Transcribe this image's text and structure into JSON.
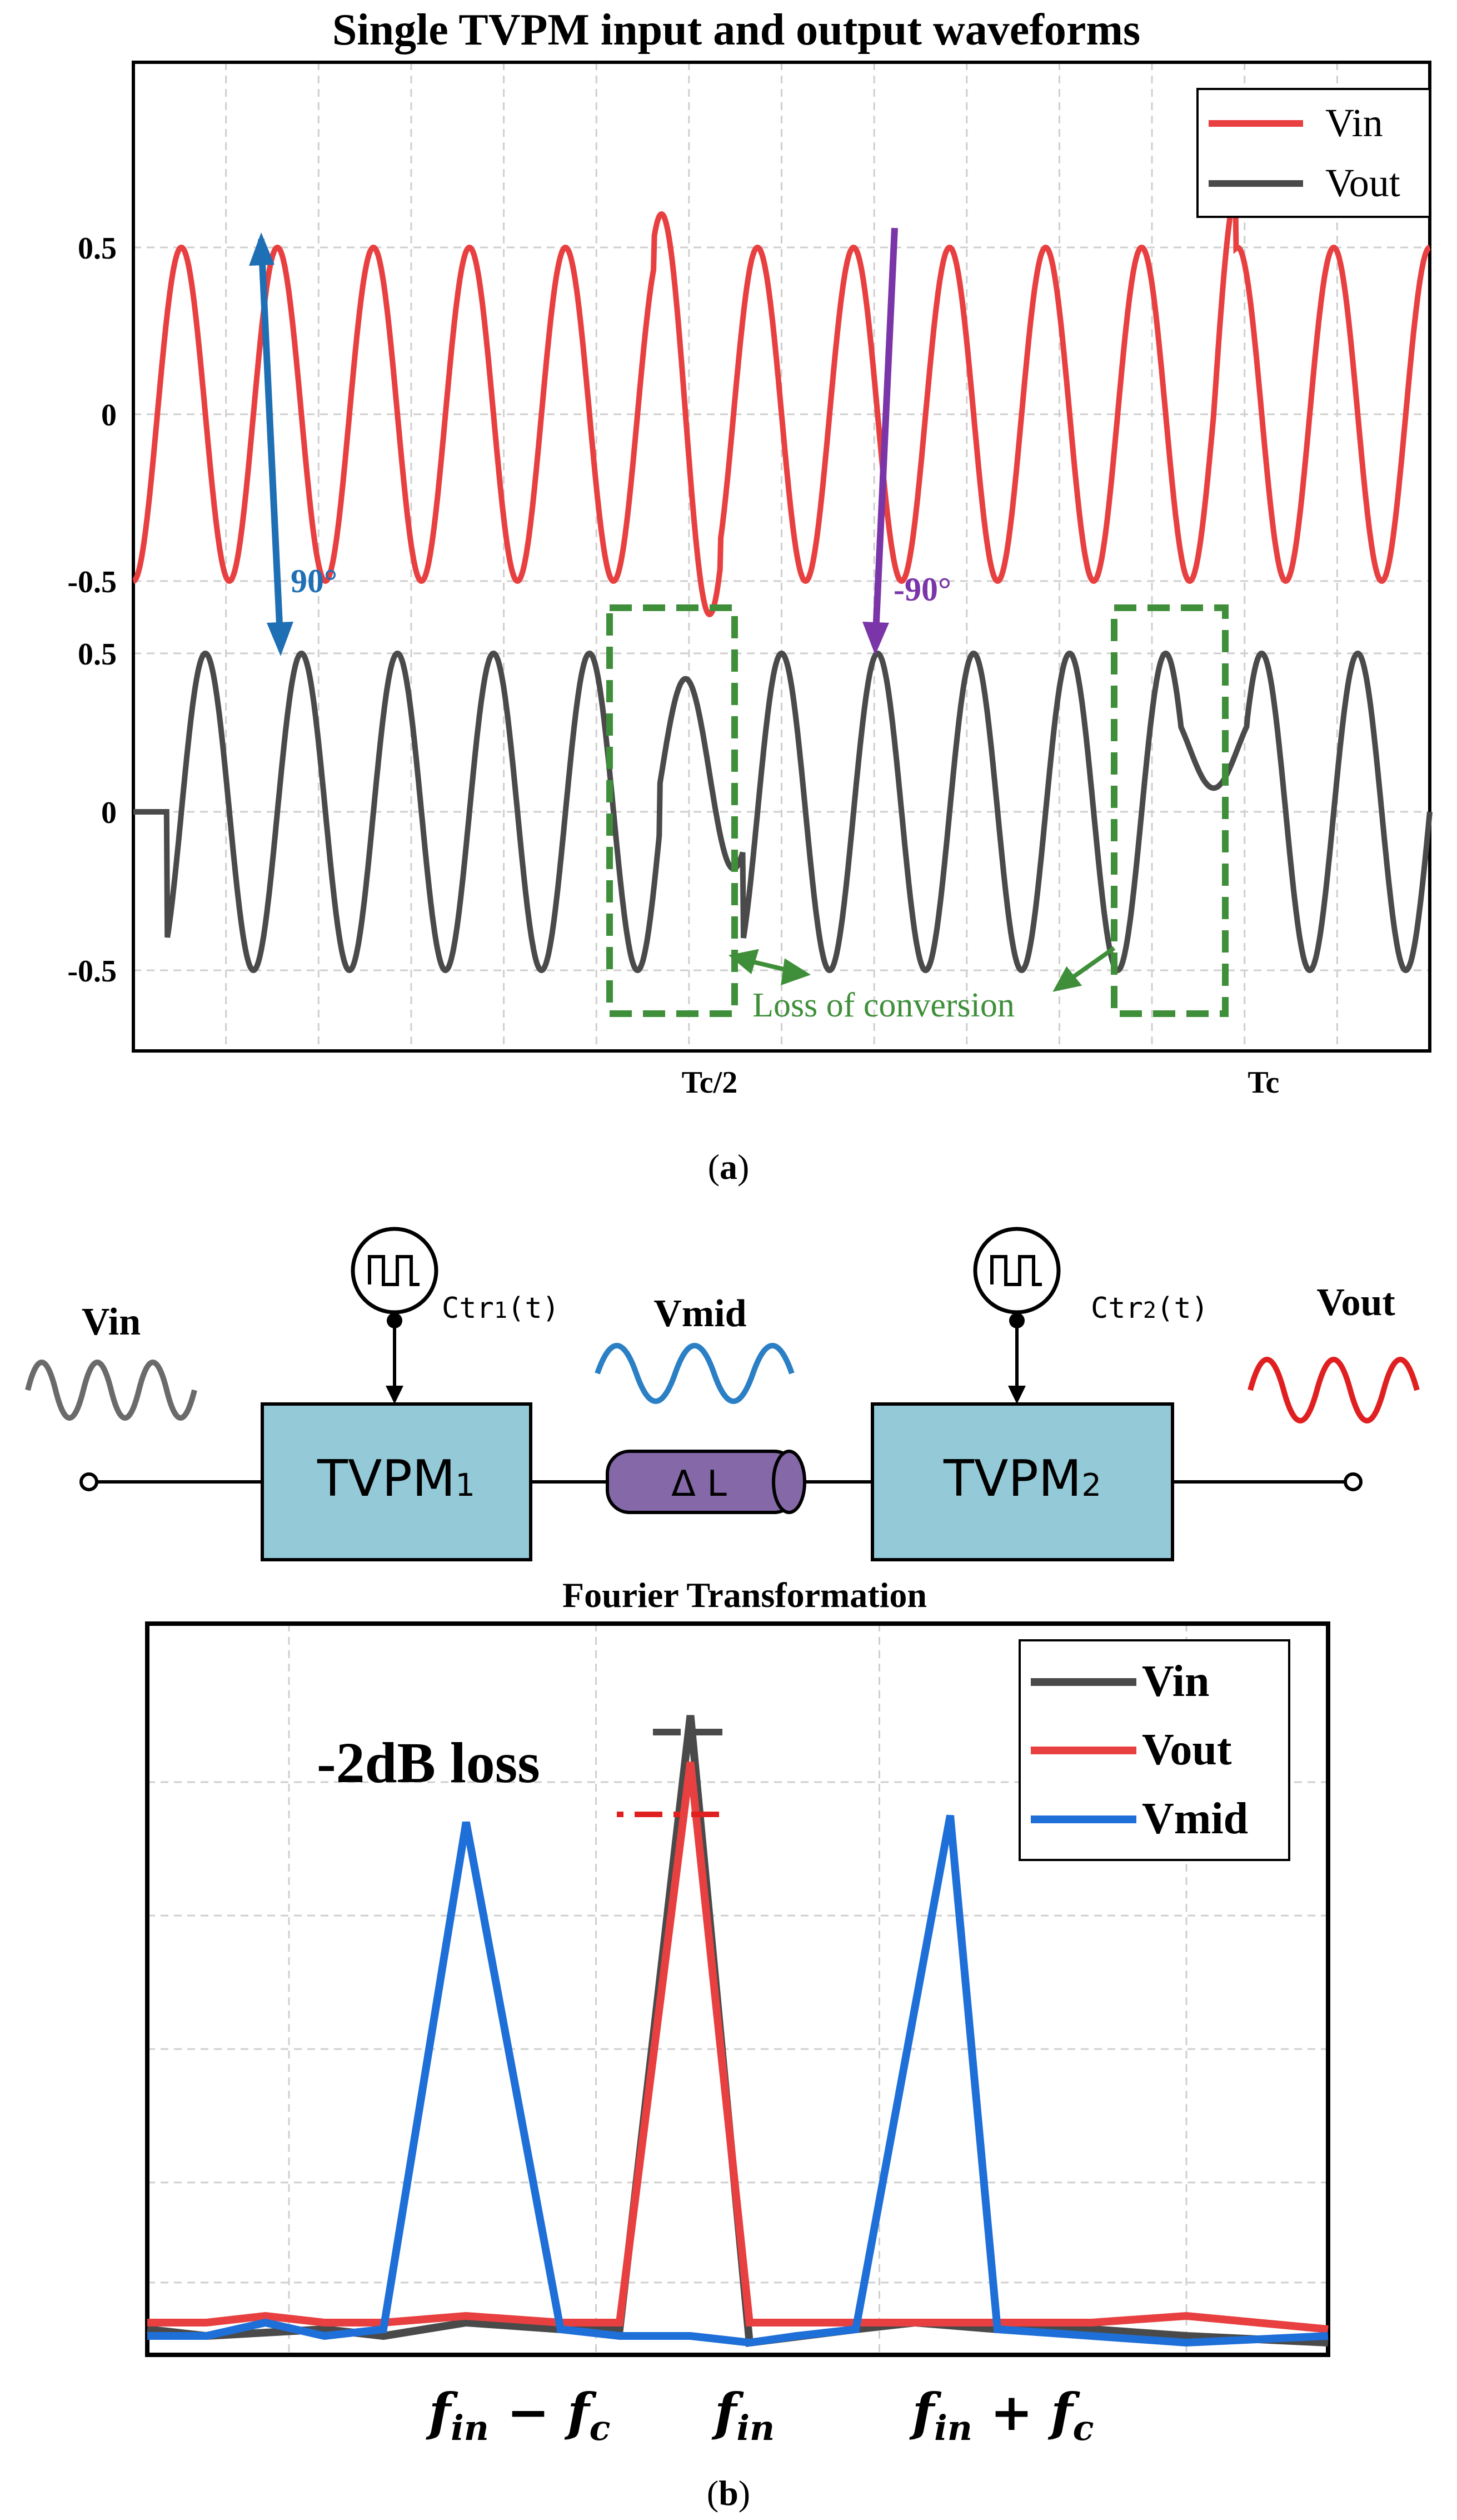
{
  "figure_a": {
    "caption_open": "(",
    "caption_letter": "a",
    "caption_close": ")",
    "legend": [
      {
        "label": "Vin",
        "color": "#e84040"
      },
      {
        "label": "Vout",
        "color": "#4a4a4a"
      }
    ],
    "annotations": {
      "phase_in": "90°",
      "phase_in_color": "#1f6fb5",
      "phase_out": "-90°",
      "phase_out_color": "#7a35a8",
      "loss": "Loss of conversion",
      "loss_color": "#3f8f3a"
    }
  },
  "figure_b_diagram": {
    "vin_label": "Vin",
    "vmid_label": "Vmid",
    "vout_label": "Vout",
    "block1_main": "TVPM",
    "block1_sub": "1",
    "block2_main": "TVPM",
    "block2_sub": "2",
    "ctr1_main": "Ctr",
    "ctr1_sub": "1",
    "ctr1_tail": "(t)",
    "ctr2_main": "Ctr",
    "ctr2_sub": "2",
    "ctr2_tail": "(t)",
    "delay_label": "Δ L",
    "colors": {
      "block": "#94cad8",
      "delay": "#8468a8",
      "vin_wave": "#6a6a6a",
      "vmid_wave": "#2b7fc4",
      "vout_wave": "#e02020"
    }
  },
  "figure_b": {
    "caption_open": "(",
    "caption_letter": "b",
    "caption_close": ")",
    "loss_text": "-2dB loss",
    "xtick_minus": {
      "f": "f",
      "sub": "in",
      "op": " − ",
      "f2": "f",
      "sub2": "c"
    },
    "xtick_center": {
      "f": "f",
      "sub": "in"
    },
    "xtick_plus": {
      "f": "f",
      "sub": "in",
      "op": " + ",
      "f2": "f",
      "sub2": "c"
    }
  },
  "chart_data": [
    {
      "type": "line",
      "title": "Single TVPM input and output waveforms",
      "xlabel": "",
      "ylabel": "",
      "x_ticks": [
        "Tc/2",
        "Tc"
      ],
      "x_tick_values": [
        0.5,
        1.0
      ],
      "xlim": [
        -0.02,
        1.15
      ],
      "grid": true,
      "legend_position": "top-right",
      "series": [
        {
          "name": "Vin",
          "color": "#e84040",
          "y_ticks": [
            "0.5",
            "0",
            "-0.5"
          ],
          "y_tick_values": [
            0.5,
            0,
            -0.5
          ],
          "ylim": [
            -0.5,
            0.5
          ],
          "description": "sinusoid, amplitude 0.5, 13.5 periods over 0..1.15 Tc; glitches near Tc/2 and Tc",
          "periods": 13.5,
          "amplitude": 0.5
        },
        {
          "name": "Vout",
          "color": "#4a4a4a",
          "y_ticks": [
            "0.5",
            "0",
            "-0.5"
          ],
          "y_tick_values": [
            0.5,
            0,
            -0.5
          ],
          "ylim": [
            -0.5,
            0.5
          ],
          "description": "sinusoid phase-shifted by 90°, amplitude 0.5, with loss-of-conversion distortion at Tc/2 and Tc",
          "periods": 13.5,
          "amplitude": 0.5
        }
      ]
    },
    {
      "type": "line",
      "title": "Fourier Transformation",
      "xlabel": "",
      "ylabel": "",
      "categories": [
        "",
        "",
        "",
        "fin − fc",
        "",
        "",
        "fin",
        "",
        "",
        "fin + fc",
        "",
        "",
        "",
        ""
      ],
      "x": [
        0,
        0.5,
        1.5,
        2.7,
        3.5,
        4.0,
        4.6,
        5.1,
        6.0,
        6.5,
        7.2,
        8.0,
        8.8,
        10
      ],
      "ylim": [
        0,
        1
      ],
      "grid": true,
      "legend_position": "top-right",
      "series": [
        {
          "name": "Vin",
          "color": "#4a4a4a",
          "x": [
            0,
            0.5,
            1.5,
            2.0,
            2.7,
            3.5,
            4.0,
            4.6,
            5.1,
            6.0,
            6.5,
            7.2,
            8.0,
            8.8,
            10
          ],
          "values": [
            0.03,
            0.02,
            0.03,
            0.02,
            0.04,
            0.03,
            0.03,
            0.95,
            0.01,
            0.03,
            0.04,
            0.03,
            0.03,
            0.02,
            0.01
          ]
        },
        {
          "name": "Vout",
          "color": "#e84040",
          "x": [
            0,
            0.5,
            1.0,
            1.5,
            2.0,
            2.7,
            3.5,
            4.0,
            4.6,
            5.1,
            6.0,
            6.5,
            7.2,
            8.0,
            8.8,
            10
          ],
          "values": [
            0.04,
            0.04,
            0.05,
            0.04,
            0.04,
            0.05,
            0.04,
            0.04,
            0.88,
            0.04,
            0.04,
            0.04,
            0.04,
            0.04,
            0.05,
            0.03
          ]
        },
        {
          "name": "Vmid",
          "color": "#1f6fd8",
          "x": [
            0,
            0.5,
            1.0,
            1.5,
            2.0,
            2.7,
            3.5,
            4.0,
            4.6,
            5.1,
            5.5,
            6.0,
            6.8,
            7.2,
            8.0,
            8.8,
            10
          ],
          "values": [
            0.02,
            0.02,
            0.04,
            0.02,
            0.03,
            0.79,
            0.03,
            0.02,
            0.02,
            0.01,
            0.02,
            0.03,
            0.8,
            0.03,
            0.02,
            0.01,
            0.02
          ]
        }
      ]
    }
  ]
}
